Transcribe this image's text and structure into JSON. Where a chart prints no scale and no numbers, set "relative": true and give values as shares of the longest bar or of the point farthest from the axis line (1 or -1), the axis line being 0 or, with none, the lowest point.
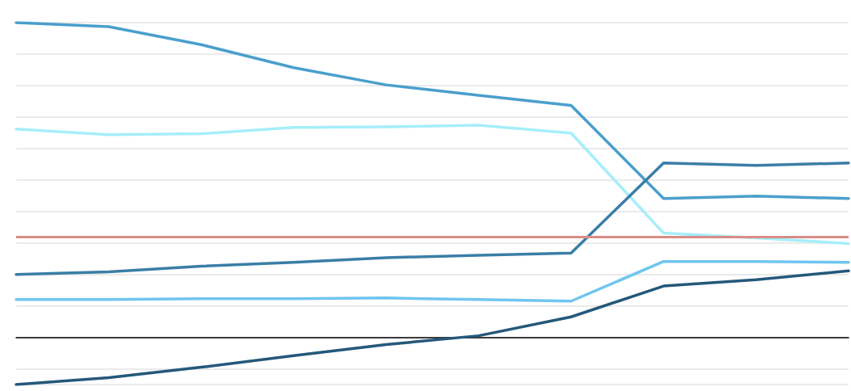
{
  "chart_data": {
    "type": "line",
    "relative": true,
    "categories": [
      null,
      null,
      null,
      null,
      null,
      null,
      null,
      null,
      null,
      null
    ],
    "series": [
      {
        "color": "#4a9fcc",
        "values": [
          1.0,
          0.987,
          0.93,
          0.857,
          0.802,
          0.769,
          0.737,
          0.441,
          0.449,
          0.441
        ]
      },
      {
        "color": "#a6eefa",
        "values": [
          0.662,
          0.644,
          0.647,
          0.667,
          0.669,
          0.674,
          0.649,
          0.331,
          0.316,
          0.298
        ]
      },
      {
        "color": "#3a7ea6",
        "values": [
          0.2,
          0.208,
          0.226,
          0.238,
          0.253,
          0.261,
          0.268,
          0.554,
          0.546,
          0.554
        ]
      },
      {
        "color": "#70c5f0",
        "values": [
          0.12,
          0.12,
          0.123,
          0.123,
          0.125,
          0.12,
          0.115,
          0.241,
          0.241,
          0.238
        ]
      },
      {
        "color": "#24587a",
        "values": [
          -0.15,
          -0.128,
          -0.095,
          -0.058,
          -0.023,
          0.005,
          0.065,
          0.163,
          0.183,
          0.211
        ]
      }
    ],
    "ref_lines": [
      {
        "axis": "y",
        "value": 0.318,
        "color": "#d98c87"
      }
    ],
    "grid": "y",
    "marker": "none",
    "line_style": "solid"
  }
}
